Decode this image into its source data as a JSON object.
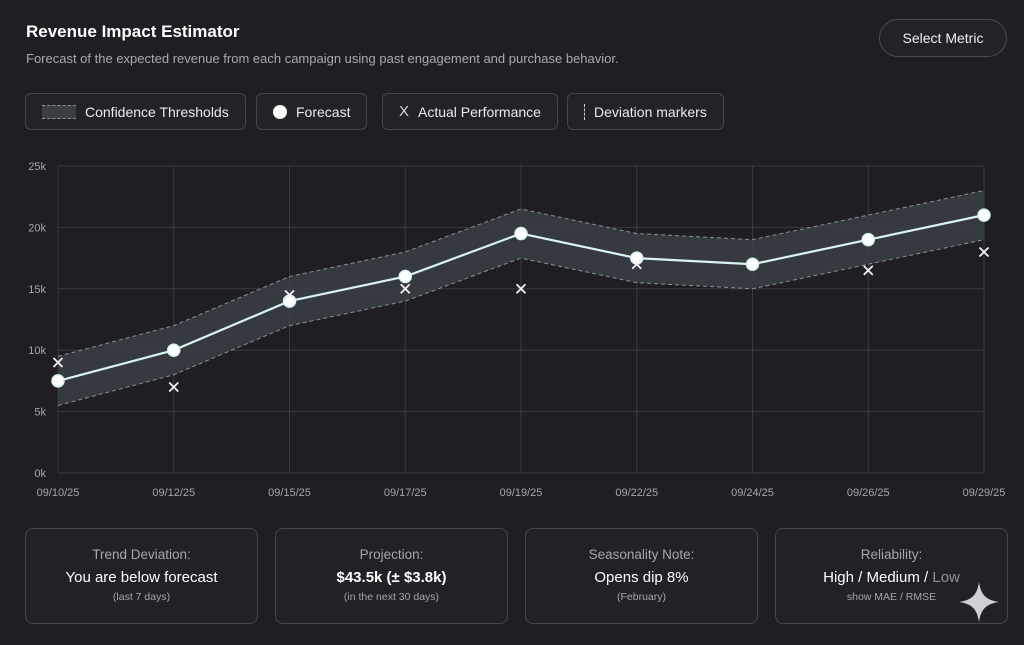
{
  "header": {
    "title": "Revenue Impact Estimator",
    "subtitle": "Forecast of the expected revenue from each campaign using past engagement and purchase behavior.",
    "select_metric_label": "Select Metric"
  },
  "legend": {
    "confidence": "Confidence Thresholds",
    "forecast": "Forecast",
    "actual_marker": "X",
    "actual": "Actual Performance",
    "deviation": "Deviation markers"
  },
  "chart_data": {
    "type": "line",
    "x": [
      "09/10/25",
      "09/12/25",
      "09/15/25",
      "09/17/25",
      "09/19/25",
      "09/22/25",
      "09/24/25",
      "09/26/25",
      "09/29/25"
    ],
    "yticks": [
      "0k",
      "5k",
      "10k",
      "15k",
      "20k",
      "25k"
    ],
    "ylim": [
      0,
      25000
    ],
    "grid": true,
    "series": [
      {
        "name": "Forecast",
        "values": [
          7500,
          10000,
          14000,
          16000,
          19500,
          17500,
          17000,
          19000,
          21000
        ]
      },
      {
        "name": "Actual Performance",
        "values": [
          9000,
          7000,
          14500,
          15000,
          15000,
          17000,
          null,
          16500,
          18000
        ]
      }
    ],
    "confidence_band": {
      "name": "Confidence Thresholds",
      "upper": [
        9500,
        12000,
        16000,
        18000,
        21500,
        19500,
        19000,
        21000,
        23000
      ],
      "lower": [
        5500,
        8000,
        12000,
        14000,
        17500,
        15500,
        15000,
        17000,
        19000
      ]
    },
    "colors": {
      "forecast": "#d8f3f1",
      "band": "#3a4045",
      "band_edge": "#8a9094",
      "actual": "#f2f2f4",
      "grid": "#3a3a40",
      "tick": "#a6a6ad"
    }
  },
  "cards": [
    {
      "label": "Trend Deviation:",
      "value": "You are below forecast",
      "note": "(last 7 days)"
    },
    {
      "label": "Projection:",
      "value": "$43.5k (± $3.8k)",
      "note": "(in the next 30 days)"
    },
    {
      "label": "Seasonality Note:",
      "value": "Opens dip 8%",
      "note": "(February)"
    },
    {
      "label": "Reliability:",
      "value_high": "High",
      "sep1": " / ",
      "value_medium": "Medium",
      "sep2": " / ",
      "value_low": "Low",
      "note": "show MAE / RMSE"
    }
  ]
}
